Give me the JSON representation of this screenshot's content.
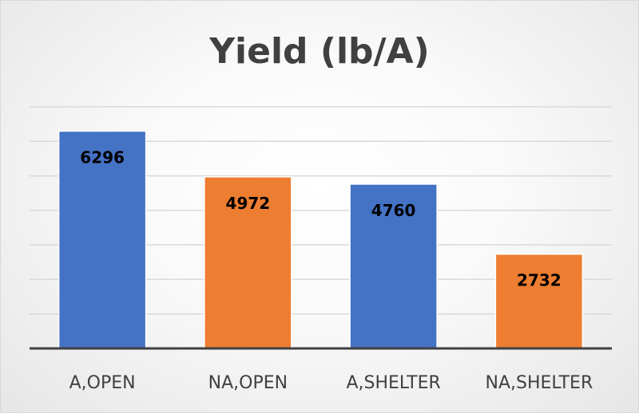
{
  "chart_data": {
    "type": "bar",
    "title": "Yield (lb/A)",
    "xlabel": "",
    "ylabel": "",
    "categories": [
      "A,OPEN",
      "NA,OPEN",
      "A,SHELTER",
      "NA,SHELTER"
    ],
    "values": [
      6296,
      4972,
      4760,
      2732
    ],
    "data_labels": [
      "6296",
      "4972",
      "4760",
      "2732"
    ],
    "ylim": [
      0,
      7000
    ],
    "grid": true,
    "legend": "none",
    "colors": [
      "#4472c4",
      "#ed7d31",
      "#4472c4",
      "#ed7d31"
    ],
    "axis_color": "#404040",
    "grid_color": "#d9d9d9"
  }
}
